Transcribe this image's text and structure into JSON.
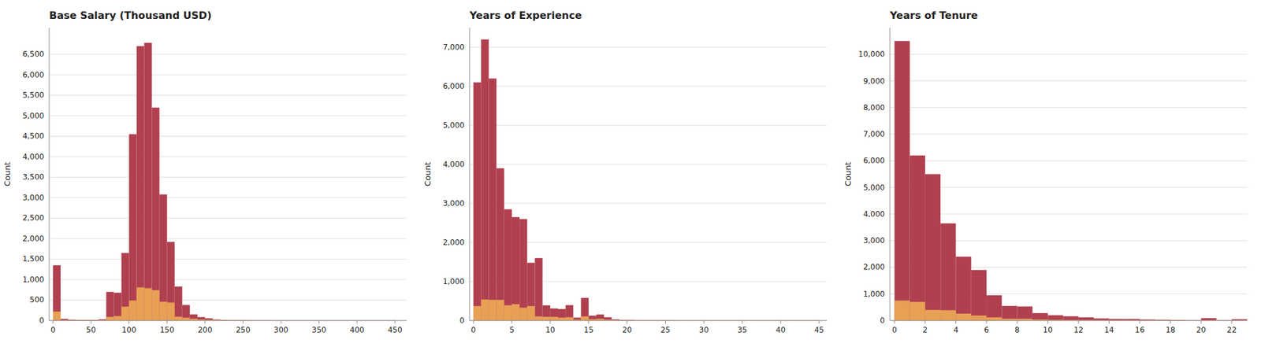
{
  "chart_data": [
    {
      "type": "histogram",
      "title": "Base Salary (Thousand USD)",
      "ylabel": "Count",
      "bins": [
        0,
        10,
        20,
        30,
        40,
        50,
        60,
        70,
        80,
        90,
        100,
        110,
        120,
        130,
        140,
        150,
        160,
        170,
        180,
        190,
        200,
        210,
        220,
        230,
        240,
        250,
        260,
        270,
        280,
        290,
        300,
        310,
        320,
        330,
        340,
        350,
        360,
        370,
        380,
        390,
        400,
        410,
        420,
        430,
        440,
        450
      ],
      "series": [
        {
          "color": "#b04050",
          "values": [
            1350,
            40,
            20,
            15,
            15,
            15,
            30,
            700,
            680,
            1650,
            4550,
            6700,
            6780,
            5200,
            3080,
            1920,
            830,
            380,
            150,
            85,
            55,
            25,
            15,
            10,
            8,
            8,
            5,
            5,
            5,
            3,
            3,
            3,
            3,
            3,
            3,
            3,
            3,
            3,
            3,
            3,
            3,
            3,
            3,
            3,
            3
          ]
        },
        {
          "color": "#e8a055",
          "values": [
            220,
            8,
            4,
            3,
            3,
            3,
            8,
            90,
            110,
            340,
            490,
            810,
            790,
            740,
            460,
            440,
            95,
            70,
            45,
            25,
            18,
            12,
            6,
            3,
            3,
            3,
            3,
            3,
            3,
            3,
            3,
            3,
            3,
            3,
            3,
            3,
            3,
            3,
            3,
            3,
            3,
            3,
            3,
            3,
            3
          ]
        }
      ],
      "xlim": [
        -5,
        465
      ],
      "ylim": [
        0,
        7150
      ],
      "xticks": [
        0,
        50,
        100,
        150,
        200,
        250,
        300,
        350,
        400,
        450
      ],
      "yticks": [
        0,
        500,
        {
          "value": 1000,
          "label": "1,000"
        },
        {
          "value": 1500,
          "label": "1,500"
        },
        {
          "value": 2000,
          "label": "2,000"
        },
        {
          "value": 2500,
          "label": "2,500"
        },
        {
          "value": 3000,
          "label": "3,000"
        },
        {
          "value": 3500,
          "label": "3,500"
        },
        {
          "value": 4000,
          "label": "4,000"
        },
        {
          "value": 4500,
          "label": "4,500"
        },
        {
          "value": 5000,
          "label": "5,000"
        },
        {
          "value": 5500,
          "label": "5,500"
        },
        {
          "value": 6000,
          "label": "6,000"
        },
        {
          "value": 6500,
          "label": "6,500"
        }
      ],
      "grid": true
    },
    {
      "type": "histogram",
      "title": "Years of Experience",
      "ylabel": "Count",
      "bins": [
        0,
        1,
        2,
        3,
        4,
        5,
        6,
        7,
        8,
        9,
        10,
        11,
        12,
        13,
        14,
        15,
        16,
        17,
        18,
        19,
        20,
        21,
        22,
        23,
        24,
        25,
        26,
        27,
        28,
        29,
        30,
        31,
        32,
        33,
        34,
        35,
        36,
        37,
        38,
        39,
        40,
        41,
        42,
        43,
        44,
        45
      ],
      "series": [
        {
          "color": "#b04050",
          "values": [
            6100,
            7200,
            6200,
            3900,
            2850,
            2650,
            2600,
            1480,
            1600,
            390,
            310,
            295,
            395,
            75,
            580,
            125,
            155,
            85,
            30,
            18,
            18,
            8,
            8,
            8,
            8,
            8,
            4,
            4,
            4,
            4,
            4,
            4,
            4,
            4,
            4,
            4,
            4,
            4,
            4,
            4,
            4,
            4,
            4,
            4,
            4
          ]
        },
        {
          "color": "#e8a055",
          "values": [
            370,
            540,
            530,
            530,
            390,
            420,
            330,
            370,
            105,
            95,
            95,
            75,
            85,
            25,
            105,
            35,
            45,
            25,
            12,
            8,
            8,
            4,
            4,
            4,
            4,
            4,
            4,
            4,
            4,
            4,
            4,
            4,
            4,
            4,
            4,
            4,
            4,
            4,
            4,
            4,
            4,
            4,
            4,
            4,
            4
          ]
        }
      ],
      "xlim": [
        -0.5,
        46
      ],
      "ylim": [
        0,
        7500
      ],
      "xticks": [
        0,
        5,
        10,
        15,
        20,
        25,
        30,
        35,
        40,
        45
      ],
      "yticks": [
        0,
        {
          "value": 1000,
          "label": "1,000"
        },
        {
          "value": 2000,
          "label": "2,000"
        },
        {
          "value": 3000,
          "label": "3,000"
        },
        {
          "value": 4000,
          "label": "4,000"
        },
        {
          "value": 5000,
          "label": "5,000"
        },
        {
          "value": 6000,
          "label": "6,000"
        },
        {
          "value": 7000,
          "label": "7,000"
        }
      ],
      "grid": true
    },
    {
      "type": "histogram",
      "title": "Years of Tenure",
      "ylabel": "Count",
      "bins": [
        0,
        1,
        2,
        3,
        4,
        5,
        6,
        7,
        8,
        9,
        10,
        11,
        12,
        13,
        14,
        15,
        16,
        17,
        18,
        19,
        20,
        21,
        22,
        23
      ],
      "series": [
        {
          "color": "#b04050",
          "values": [
            10500,
            6200,
            5500,
            3650,
            2400,
            1900,
            950,
            550,
            530,
            280,
            200,
            160,
            120,
            80,
            60,
            60,
            40,
            30,
            20,
            10,
            90,
            10,
            50
          ]
        },
        {
          "color": "#e8a055",
          "values": [
            750,
            700,
            400,
            390,
            260,
            190,
            120,
            70,
            70,
            40,
            30,
            25,
            20,
            15,
            10,
            10,
            8,
            6,
            5,
            3,
            15,
            3,
            8
          ]
        }
      ],
      "xlim": [
        -0.3,
        23
      ],
      "ylim": [
        0,
        11000
      ],
      "xticks": [
        0,
        2,
        4,
        6,
        8,
        10,
        12,
        14,
        16,
        18,
        20,
        22
      ],
      "yticks": [
        0,
        {
          "value": 1000,
          "label": "1,000"
        },
        {
          "value": 2000,
          "label": "2,000"
        },
        {
          "value": 3000,
          "label": "3,000"
        },
        {
          "value": 4000,
          "label": "4,000"
        },
        {
          "value": 5000,
          "label": "5,000"
        },
        {
          "value": 6000,
          "label": "6,000"
        },
        {
          "value": 7000,
          "label": "7,000"
        },
        {
          "value": 8000,
          "label": "8,000"
        },
        {
          "value": 9000,
          "label": "9,000"
        },
        {
          "value": 10000,
          "label": "10,000"
        }
      ],
      "grid": true
    }
  ]
}
